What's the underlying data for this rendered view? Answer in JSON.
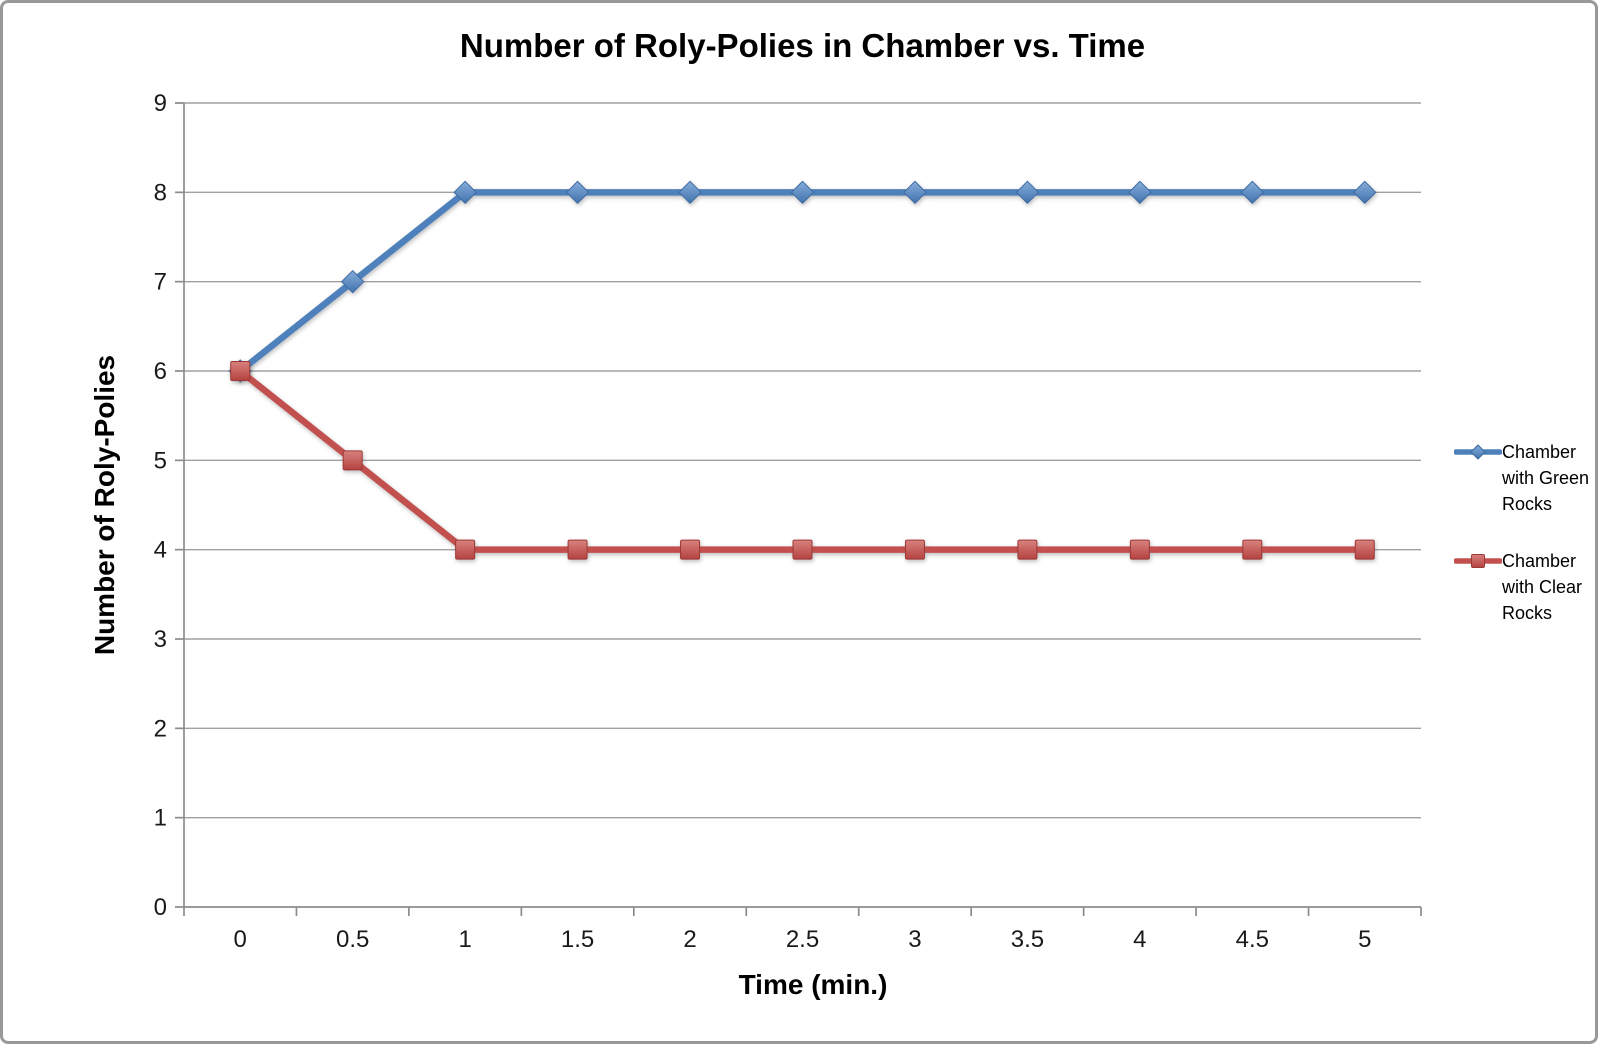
{
  "chart_data": {
    "type": "line",
    "title": "Number of Roly-Polies in Chamber vs. Time",
    "xlabel": "Time (min.)",
    "ylabel": "Number of Roly-Polies",
    "x": [
      0,
      0.5,
      1,
      1.5,
      2,
      2.5,
      3,
      3.5,
      4,
      4.5,
      5
    ],
    "x_tick_labels": [
      "0",
      "0.5",
      "1",
      "1.5",
      "2",
      "2.5",
      "3",
      "3.5",
      "4",
      "4.5",
      "5"
    ],
    "y_ticks": [
      0,
      1,
      2,
      3,
      4,
      5,
      6,
      7,
      8,
      9
    ],
    "ylim": [
      0,
      9
    ],
    "grid": true,
    "legend_position": "right",
    "axis_color": "#8C8C8C",
    "gridline_color": "#A0A0A0",
    "series": [
      {
        "name": "Chamber with Green Rocks",
        "marker": "diamond",
        "color": "#4E81BC",
        "marker_fill_light": "#86ADDC",
        "marker_fill_dark": "#4273AC",
        "marker_stroke": "#3C69A0",
        "values": [
          6,
          7,
          8,
          8,
          8,
          8,
          8,
          8,
          8,
          8,
          8
        ]
      },
      {
        "name": "Chamber with Clear Rocks",
        "marker": "square",
        "color": "#C2504E",
        "marker_fill_light": "#D8827F",
        "marker_fill_dark": "#B4423F",
        "marker_stroke": "#9C3836",
        "values": [
          6,
          5,
          4,
          4,
          4,
          4,
          4,
          4,
          4,
          4,
          4
        ]
      }
    ]
  }
}
